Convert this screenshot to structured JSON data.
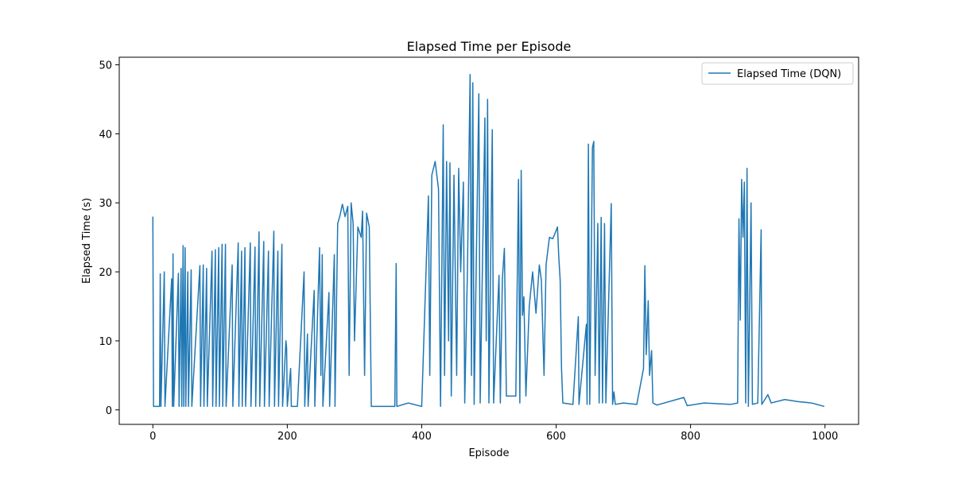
{
  "chart_data": {
    "type": "line",
    "title": "Elapsed Time per Episode",
    "x_label": "Episode",
    "y_label": "Elapsed Time (s)",
    "x": [
      0,
      1,
      10,
      11,
      12,
      17,
      18,
      28,
      29,
      30,
      31,
      38,
      39,
      42,
      43,
      45,
      46,
      48,
      49,
      52,
      53,
      57,
      58,
      70,
      71,
      75,
      76,
      80,
      81,
      88,
      89,
      93,
      94,
      98,
      99,
      103,
      104,
      108,
      109,
      118,
      119,
      127,
      128,
      132,
      133,
      137,
      138,
      145,
      146,
      152,
      153,
      158,
      159,
      165,
      166,
      172,
      173,
      180,
      181,
      186,
      187,
      192,
      193,
      198,
      199,
      200,
      205,
      206,
      215,
      225,
      226,
      230,
      231,
      240,
      241,
      248,
      250,
      252,
      253,
      262,
      263,
      270,
      271,
      275,
      278,
      282,
      286,
      290,
      292,
      295,
      298,
      300,
      305,
      310,
      312,
      315,
      318,
      322,
      325,
      360,
      362,
      363,
      380,
      400,
      410,
      412,
      415,
      420,
      425,
      428,
      432,
      434,
      437,
      440,
      442,
      444,
      448,
      452,
      455,
      458,
      462,
      464,
      468,
      472,
      474,
      476,
      478,
      485,
      487,
      494,
      496,
      498,
      500,
      505,
      507,
      515,
      517,
      520,
      523,
      526,
      540,
      544,
      546,
      548,
      550,
      552,
      555,
      560,
      565,
      570,
      575,
      578,
      582,
      585,
      590,
      595,
      598,
      602,
      604,
      606,
      608,
      610,
      625,
      633,
      634,
      645,
      646,
      648,
      650,
      654,
      656,
      658,
      662,
      664,
      667,
      669,
      672,
      674,
      682,
      684,
      686,
      688,
      700,
      720,
      730,
      732,
      734,
      737,
      739,
      742,
      744,
      750,
      790,
      795,
      820,
      860,
      870,
      872,
      874,
      876,
      878,
      880,
      882,
      884,
      886,
      890,
      892,
      900,
      905,
      906,
      915,
      920,
      940,
      960,
      980,
      999
    ],
    "series": [
      {
        "name": "Elapsed Time (DQN)",
        "color": "#1f77b4",
        "values": [
          28,
          0.5,
          0.5,
          19.7,
          0.5,
          20,
          0.5,
          19,
          0.5,
          22.6,
          0.5,
          19.8,
          0.5,
          20.5,
          0.5,
          23.8,
          0.5,
          23.5,
          0.5,
          20,
          0.5,
          20.3,
          0.5,
          20.9,
          0.5,
          21,
          0.5,
          20.5,
          0.5,
          23,
          0.5,
          23.2,
          0.5,
          23.5,
          0.5,
          24,
          0.5,
          24,
          0.5,
          21,
          0.5,
          24.2,
          0.5,
          23,
          0.5,
          23.5,
          0.5,
          24.2,
          0.5,
          23.6,
          0.5,
          25.8,
          0.5,
          24.4,
          0.5,
          23,
          0.5,
          25.9,
          0.5,
          23,
          0.5,
          24,
          0.5,
          10,
          9,
          0.5,
          6,
          0.5,
          0.5,
          20,
          0.5,
          11,
          0.5,
          17.3,
          0.5,
          23.5,
          5,
          22.5,
          0.5,
          17,
          0.5,
          22.5,
          0.5,
          27,
          28,
          29.8,
          28,
          29.5,
          5,
          30,
          27,
          10,
          26.5,
          25,
          28.8,
          5,
          28.5,
          26.5,
          0.5,
          0.5,
          21.2,
          0.5,
          1,
          0.5,
          31,
          5,
          34,
          36,
          32,
          0.5,
          41.3,
          5,
          36,
          10,
          35.8,
          2,
          34,
          5,
          35,
          20,
          33,
          1,
          20,
          48.6,
          5,
          47.4,
          0.8,
          45.8,
          1,
          42.3,
          10,
          45,
          1,
          40.6,
          1,
          19.5,
          1,
          19,
          23.4,
          2,
          2,
          33.4,
          1,
          34.7,
          13.7,
          16.4,
          2,
          15,
          20,
          14,
          21,
          18.8,
          5,
          21,
          25,
          24.8,
          25.5,
          26.5,
          22,
          18.8,
          6,
          1,
          0.8,
          13.5,
          0.8,
          12.4,
          0.8,
          38.5,
          0.8,
          38,
          38.9,
          5,
          27,
          1,
          27.9,
          1,
          27,
          1,
          29.9,
          0.8,
          2.6,
          0.8,
          1,
          0.8,
          6,
          20.9,
          8,
          15.8,
          5,
          8.6,
          1,
          0.7,
          1.8,
          0.6,
          1,
          0.8,
          1,
          27.7,
          13,
          33.4,
          25,
          33,
          1,
          35,
          0.5,
          30,
          0.8,
          1,
          26.1,
          0.8,
          2.2,
          1,
          1.5,
          1.2,
          1,
          0.5
        ]
      }
    ],
    "xlim": [
      -50,
      1050
    ],
    "ylim": [
      -2.1,
      51.1
    ],
    "xticks": [
      0,
      200,
      400,
      600,
      800,
      1000
    ],
    "yticks": [
      0,
      10,
      20,
      30,
      40,
      50
    ],
    "legend": "upper right"
  }
}
